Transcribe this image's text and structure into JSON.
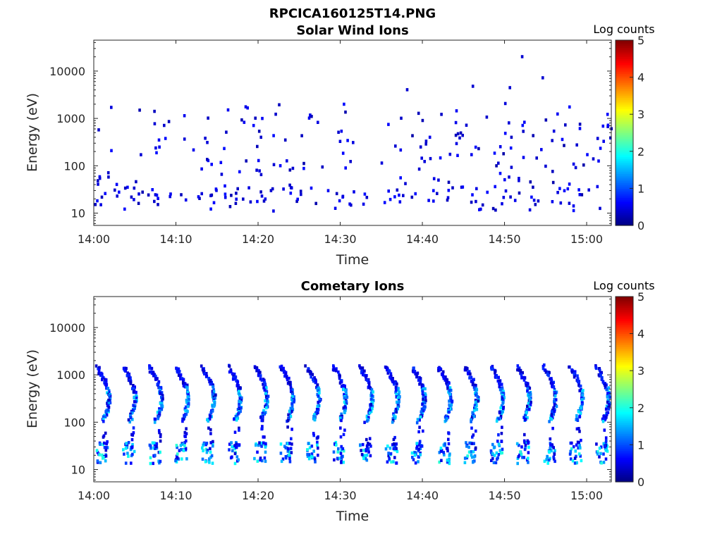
{
  "figure_title": "RPCICA160125T14.PNG",
  "chart_data": [
    {
      "type": "heatmap",
      "title": "Solar Wind Ions",
      "xlabel": "Time",
      "ylabel": "Energy (eV)",
      "x_ticks": [
        "14:00",
        "14:10",
        "14:20",
        "14:30",
        "14:40",
        "14:50",
        "15:00"
      ],
      "y_ticks": [
        "10",
        "100",
        "1000",
        "10000"
      ],
      "y_scale": "log",
      "xlim_minutes": [
        0,
        63
      ],
      "ylim_eV": [
        5.5,
        45000
      ],
      "colorbar": {
        "label": "Log counts",
        "ticks": [
          "0",
          "1",
          "2",
          "3",
          "4",
          "5"
        ],
        "range": [
          0,
          5
        ],
        "colormap": "jet"
      },
      "colors": {
        "low": "#00008f",
        "mid": "#00ffff",
        "high": "#800000"
      },
      "description": "Sparse scattered counts (mostly log 0-1) across 10 eV - 20 keV; recurring low-energy band near 20 eV."
    },
    {
      "type": "heatmap",
      "title": "Cometary Ions",
      "xlabel": "Time",
      "ylabel": "Energy (eV)",
      "x_ticks": [
        "14:00",
        "14:10",
        "14:20",
        "14:30",
        "14:40",
        "14:50",
        "15:00"
      ],
      "y_ticks": [
        "10",
        "100",
        "1000",
        "10000"
      ],
      "y_scale": "log",
      "xlim_minutes": [
        0,
        63
      ],
      "ylim_eV": [
        5.5,
        45000
      ],
      "colorbar": {
        "label": "Log counts",
        "ticks": [
          "0",
          "1",
          "2",
          "3",
          "4",
          "5"
        ],
        "range": [
          0,
          5
        ],
        "colormap": "jet"
      },
      "colors": {
        "low": "#00008f",
        "mid": "#00ffff",
        "high": "#800000"
      },
      "description": "Periodic energy sweeps (~3.2 min) descending from ~1.5 keV to ~100 eV, plus strong band 10-30 eV (log counts up to ~2)."
    }
  ]
}
